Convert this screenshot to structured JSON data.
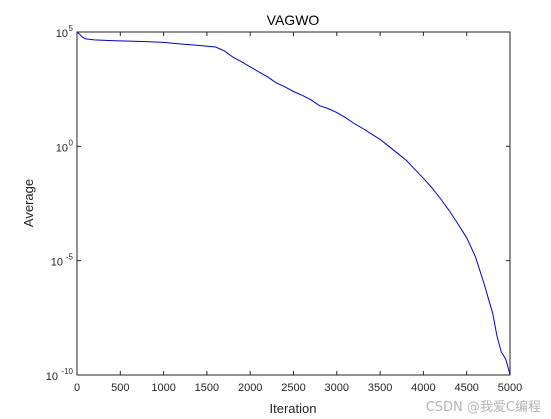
{
  "chart_data": {
    "type": "line",
    "title": "VAGWO",
    "xlabel": "Iteration",
    "ylabel": "Average",
    "xlim": [
      0,
      5000
    ],
    "ylim": [
      1e-10,
      100000.0
    ],
    "yscale": "log",
    "grid": false,
    "x_ticks": [
      0,
      500,
      1000,
      1500,
      2000,
      2500,
      3000,
      3500,
      4000,
      4500,
      5000
    ],
    "y_ticks": [
      {
        "value": 100000.0,
        "base": "10",
        "exp": "5"
      },
      {
        "value": 1,
        "base": "10",
        "exp": "0"
      },
      {
        "value": 1e-05,
        "base": "10",
        "exp": "-5"
      },
      {
        "value": 1e-10,
        "base": "10",
        "exp": "-10"
      }
    ],
    "series": [
      {
        "color": "#0000cc",
        "x": [
          0,
          30,
          60,
          100,
          200,
          400,
          600,
          800,
          1000,
          1200,
          1400,
          1600,
          1700,
          1800,
          1900,
          2000,
          2100,
          2200,
          2300,
          2400,
          2500,
          2600,
          2700,
          2800,
          2900,
          3000,
          3100,
          3200,
          3300,
          3400,
          3500,
          3600,
          3700,
          3800,
          3900,
          4000,
          4100,
          4200,
          4300,
          4400,
          4500,
          4600,
          4700,
          4800,
          4850,
          4900,
          4950,
          4980,
          5000
        ],
        "y": [
          300000.0,
          80000.0,
          60000.0,
          50000.0,
          45000.0,
          42000.0,
          40000.0,
          38000.0,
          35000.0,
          30000.0,
          26000.0,
          22000.0,
          15000.0,
          8000.0,
          5000.0,
          3000.0,
          1800.0,
          1100.0,
          600,
          400,
          250,
          170,
          110,
          60,
          45,
          30,
          18,
          10,
          6,
          3.5,
          2,
          1,
          0.5,
          0.25,
          0.1,
          0.04,
          0.015,
          0.005,
          0.0015,
          0.0004,
          0.0001,
          1.5e-05,
          1e-06,
          5e-08,
          5e-09,
          1e-09,
          5e-10,
          2e-10,
          1e-10
        ]
      }
    ]
  },
  "watermark": "CSDN @我爱C编程"
}
